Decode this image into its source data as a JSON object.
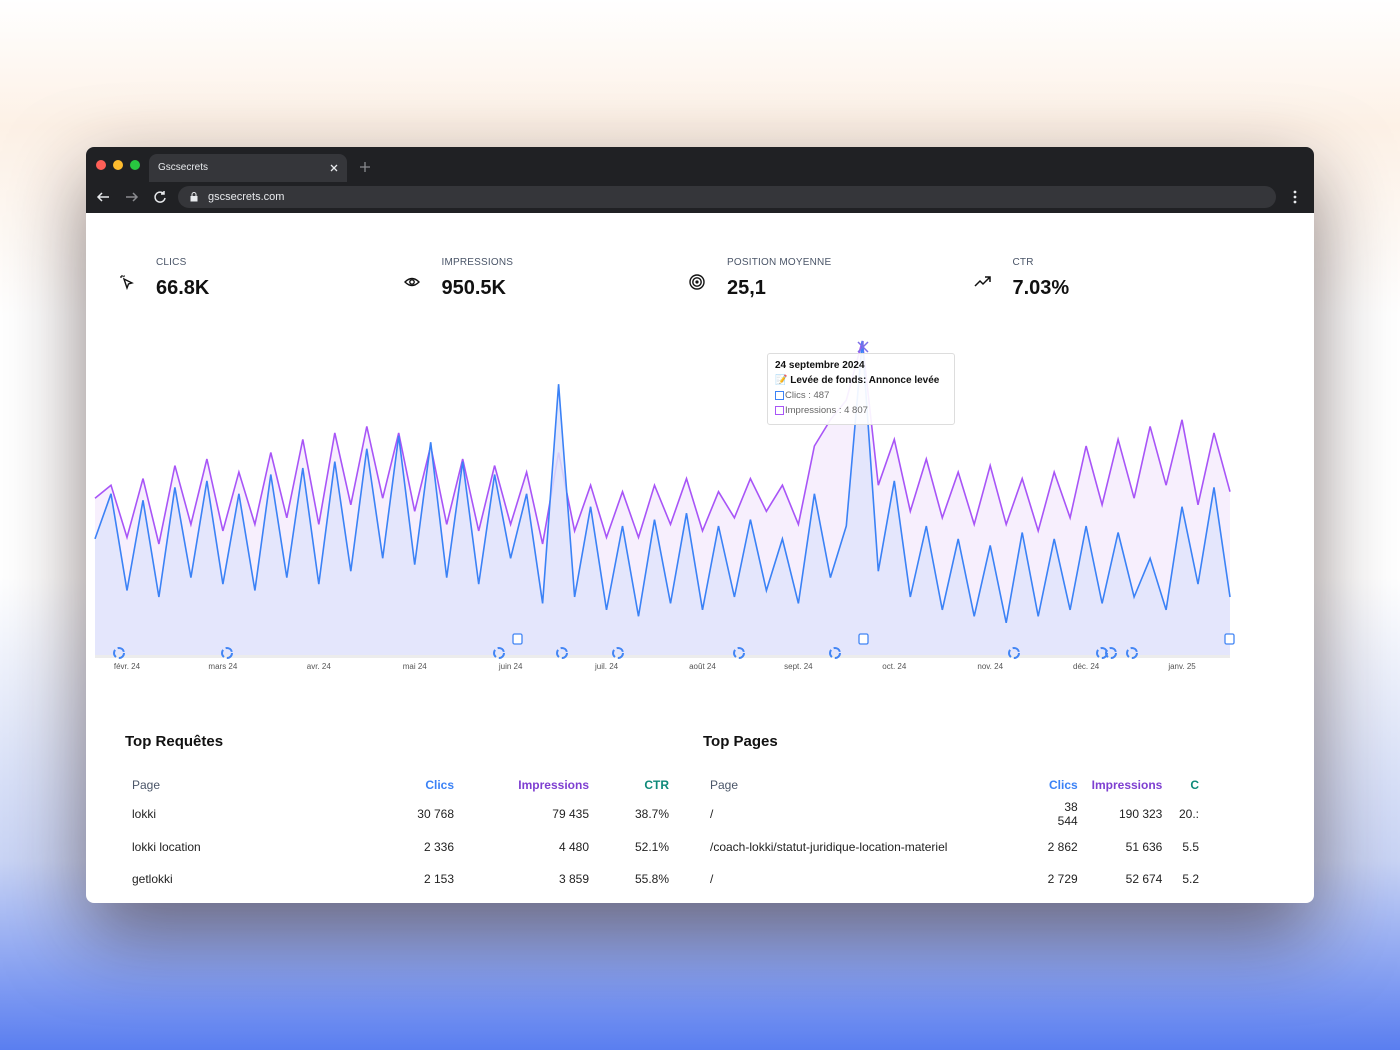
{
  "browser": {
    "tab_title": "Gscsecrets",
    "url": "gscsecrets.com"
  },
  "metrics": [
    {
      "label": "CLICS",
      "value": "66.8K"
    },
    {
      "label": "IMPRESSIONS",
      "value": "950.5K"
    },
    {
      "label": "POSITION MOYENNE",
      "value": "25,1"
    },
    {
      "label": "CTR",
      "value": "7.03%"
    }
  ],
  "chart_data": {
    "type": "line",
    "categories": [
      null,
      null,
      "févr. 24",
      null,
      null,
      null,
      null,
      null,
      "mars 24",
      null,
      null,
      null,
      null,
      null,
      "avr. 24",
      null,
      null,
      null,
      null,
      null,
      "mai 24",
      null,
      null,
      null,
      null,
      null,
      "juin 24",
      null,
      null,
      null,
      null,
      null,
      "juil. 24",
      null,
      null,
      null,
      null,
      null,
      "août 24",
      null,
      null,
      null,
      null,
      null,
      "sept. 24",
      null,
      null,
      null,
      null,
      null,
      "oct. 24",
      null,
      null,
      null,
      null,
      null,
      "nov. 24",
      null,
      null,
      null,
      null,
      null,
      "déc. 24",
      null,
      null,
      null,
      null,
      null,
      "janv. 25",
      null,
      null,
      null
    ],
    "series": [
      {
        "color": "#3b82f6",
        "fill": "#e0e4fb",
        "values": [
          180,
          250,
          100,
          240,
          90,
          260,
          120,
          270,
          110,
          250,
          100,
          280,
          120,
          290,
          110,
          300,
          130,
          320,
          150,
          340,
          140,
          330,
          120,
          300,
          110,
          280,
          150,
          250,
          80,
          420,
          90,
          230,
          70,
          200,
          60,
          210,
          80,
          220,
          70,
          200,
          90,
          210,
          100,
          180,
          80,
          250,
          120,
          200,
          487,
          130,
          270,
          90,
          200,
          70,
          180,
          60,
          170,
          50,
          190,
          60,
          180,
          70,
          200,
          80,
          190,
          90,
          150,
          70,
          230,
          110,
          260,
          90
        ]
      },
      {
        "color": "#a855f7",
        "fill": "#f6ecfd",
        "values": [
          2400,
          2600,
          1800,
          2700,
          1700,
          2900,
          2000,
          3000,
          1900,
          2800,
          2000,
          3100,
          2100,
          3300,
          2000,
          3400,
          2300,
          3500,
          2400,
          3400,
          2200,
          3200,
          2000,
          3000,
          1900,
          2900,
          2000,
          2800,
          1700,
          3100,
          1900,
          2600,
          1800,
          2500,
          1800,
          2600,
          2000,
          2700,
          1900,
          2500,
          2100,
          2700,
          2200,
          2600,
          2000,
          3200,
          3600,
          3900,
          4807,
          2600,
          3300,
          2200,
          3000,
          2100,
          2800,
          2000,
          2900,
          2000,
          2700,
          1900,
          2800,
          2100,
          3200,
          2300,
          3300,
          2400,
          3500,
          2600,
          3600,
          2300,
          3400,
          2500
        ]
      }
    ],
    "tooltip": {
      "date": "24 septembre 2024",
      "note": "📝 Levée de fonds: Annonce levée",
      "lines": [
        "Clics : 487",
        "Impressions : 4 807"
      ]
    }
  },
  "tables": [
    {
      "title": "Top Requêtes",
      "columns": [
        "Page",
        "Clics",
        "Impressions",
        "CTR"
      ],
      "rows": [
        [
          "lokki",
          "30 768",
          "79 435",
          "38.7%"
        ],
        [
          "lokki location",
          "2 336",
          "4 480",
          "52.1%"
        ],
        [
          "getlokki",
          "2 153",
          "3 859",
          "55.8%"
        ]
      ]
    },
    {
      "title": "Top Pages",
      "columns": [
        "Page",
        "Clics",
        "Impressions",
        "C"
      ],
      "rows": [
        [
          "/",
          "38 544",
          "190 323",
          "20.:"
        ],
        [
          "/coach-lokki/statut-juridique-location-materiel",
          "2 862",
          "51 636",
          "5.5"
        ],
        [
          "/",
          "2 729",
          "52 674",
          "5.2"
        ]
      ]
    }
  ]
}
